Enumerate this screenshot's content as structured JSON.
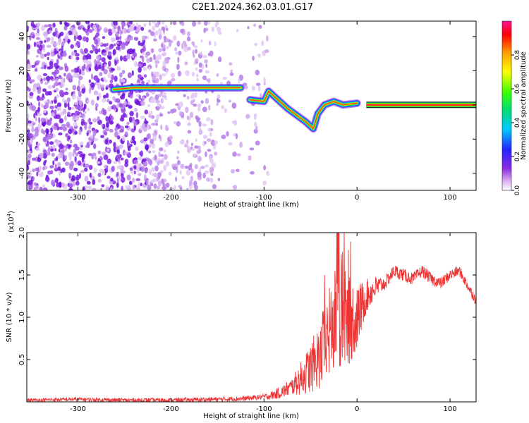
{
  "chart_data": [
    {
      "type": "heatmap",
      "title": "C2E1.2024.362.03.01.G17",
      "xlabel": "Height of straight line (km)",
      "ylabel": "Frequency (Hz)",
      "xlim": [
        -355,
        128
      ],
      "ylim": [
        -50,
        49
      ],
      "x_ticks": [
        -300,
        -200,
        -100,
        0,
        100
      ],
      "y_ticks": [
        -40,
        -20,
        0,
        20,
        40
      ],
      "colorbar": {
        "label": "Normalized spectral amplitude",
        "range": [
          0,
          1
        ],
        "ticks": [
          0.0,
          0.2,
          0.4,
          0.6,
          0.8
        ],
        "colors": [
          "#ffffff",
          "#d8a8f0",
          "#8b2be2",
          "#2424ff",
          "#00c8ff",
          "#00e070",
          "#3cff00",
          "#ffff00",
          "#ff9600",
          "#ff0000",
          "#ff1493"
        ]
      },
      "description_features": {
        "noise_region_x": [
          -355,
          -95
        ],
        "signal_track": [
          {
            "x": -262,
            "y": 9
          },
          {
            "x": -240,
            "y": 10
          },
          {
            "x": -220,
            "y": 10
          },
          {
            "x": -200,
            "y": 10
          },
          {
            "x": -180,
            "y": 10
          },
          {
            "x": -160,
            "y": 10
          },
          {
            "x": -140,
            "y": 10
          },
          {
            "x": -125,
            "y": 10
          },
          {
            "x": -115,
            "y": 3
          },
          {
            "x": -100,
            "y": 2
          },
          {
            "x": -95,
            "y": 8
          },
          {
            "x": -85,
            "y": 3
          },
          {
            "x": -75,
            "y": -2
          },
          {
            "x": -65,
            "y": -6
          },
          {
            "x": -55,
            "y": -10
          },
          {
            "x": -47,
            "y": -14
          },
          {
            "x": -42,
            "y": -5
          },
          {
            "x": -35,
            "y": 0
          },
          {
            "x": -25,
            "y": 2
          },
          {
            "x": -15,
            "y": 0
          },
          {
            "x": 0,
            "y": 1
          },
          {
            "x": 10,
            "y": 0
          },
          {
            "x": 128,
            "y": 0
          }
        ]
      }
    },
    {
      "type": "line",
      "xlabel": "Height of straight line (km)",
      "ylabel": "SNR (10 * v/v)",
      "y_multiplier": "(x10",
      "y_multiplier_exp": "4",
      "xlim": [
        -355,
        128
      ],
      "ylim": [
        0,
        2.0
      ],
      "x_ticks": [
        -300,
        -200,
        -100,
        0,
        100
      ],
      "y_ticks": [
        0.5,
        1.0,
        1.5,
        2.0
      ],
      "line_color": "#ee3333",
      "envelope": {
        "x": [
          -355,
          -300,
          -250,
          -200,
          -150,
          -120,
          -100,
          -90,
          -80,
          -70,
          -60,
          -50,
          -40,
          -30,
          -20,
          -10,
          0,
          10,
          20,
          30,
          40,
          50,
          60,
          70,
          80,
          90,
          100,
          110,
          120,
          128
        ],
        "y": [
          0.02,
          0.03,
          0.02,
          0.02,
          0.03,
          0.04,
          0.06,
          0.08,
          0.12,
          0.18,
          0.28,
          0.4,
          0.55,
          0.8,
          1.05,
          0.95,
          1.0,
          1.25,
          1.35,
          1.4,
          1.55,
          1.5,
          1.45,
          1.55,
          1.45,
          1.4,
          1.5,
          1.55,
          1.35,
          1.2
        ]
      },
      "noise_amplitude": {
        "x": [
          -355,
          -100,
          -70,
          -50,
          -40,
          -30,
          -20,
          -10,
          0,
          10,
          30,
          128
        ],
        "a": [
          0.02,
          0.03,
          0.1,
          0.3,
          0.4,
          0.55,
          0.65,
          0.55,
          0.4,
          0.2,
          0.08,
          0.06
        ]
      }
    }
  ]
}
